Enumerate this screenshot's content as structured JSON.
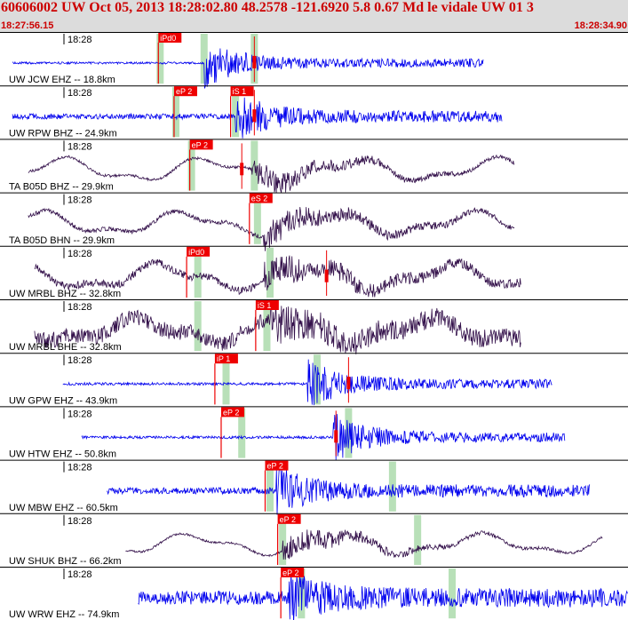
{
  "header": {
    "title": "60606002 UW Oct 05, 2013 18:28:02.80   48.2578 -121.6920  5.8 0.67 Md le vidale UW 01    3",
    "start_time": "18:27:56.15",
    "end_time": "18:28:34.90"
  },
  "colors": {
    "header_bg": "#dcdcdc",
    "header_text": "#cc0000",
    "hf_trace": "#0000ee",
    "lp_trace": "#33104a",
    "pick_box": "#ee0000",
    "green_band": "#b8e0b8"
  },
  "chart_data": {
    "type": "line",
    "minute_label": "18:28",
    "traces": [
      {
        "label": "UW JCW EHZ -- 18.8km",
        "style": "hf",
        "start": 0.02,
        "end": 0.77,
        "onset": 0.325,
        "amp": 0.9,
        "noise": 0.04,
        "picks": [
          {
            "text": "iPd0",
            "pos": 0.255
          }
        ],
        "bands": [
          0.255,
          0.325,
          0.405
        ],
        "marks": [
          0.405
        ]
      },
      {
        "label": "UW RPW BHZ -- 24.9km",
        "style": "hf",
        "start": 0.02,
        "end": 0.8,
        "onset": 0.375,
        "amp": 0.85,
        "noise": 0.1,
        "picks": [
          {
            "text": "eP 2",
            "pos": 0.28
          },
          {
            "text": "iS 1",
            "pos": 0.37
          }
        ],
        "bands": [
          0.28,
          0.375
        ],
        "marks": [
          0.405
        ]
      },
      {
        "label": "TA B05D BHZ -- 29.9km",
        "style": "lp",
        "start": 0.045,
        "end": 0.82,
        "onset": 0.4,
        "amp": 0.45,
        "noise": 0.05,
        "picks": [
          {
            "text": "eP 2",
            "pos": 0.305
          }
        ],
        "bands": [
          0.305,
          0.405
        ],
        "marks": [
          0.385
        ]
      },
      {
        "label": "TA B05D BHN -- 29.9km",
        "style": "lp",
        "start": 0.045,
        "end": 0.82,
        "onset": 0.42,
        "amp": 0.45,
        "noise": 0.08,
        "picks": [
          {
            "text": "eS 2",
            "pos": 0.4
          }
        ],
        "bands": [
          0.41
        ],
        "marks": []
      },
      {
        "label": "UW MRBL BHZ -- 32.8km",
        "style": "lp",
        "start": 0.055,
        "end": 0.83,
        "onset": 0.42,
        "amp": 0.55,
        "noise": 0.15,
        "picks": [
          {
            "text": "iPd0",
            "pos": 0.3
          }
        ],
        "bands": [
          0.315,
          0.43
        ],
        "marks": [
          0.52
        ]
      },
      {
        "label": "UW MRBL BHE -- 32.8km",
        "style": "lp",
        "start": 0.055,
        "end": 0.83,
        "onset": 0.43,
        "amp": 0.5,
        "noise": 0.3,
        "picks": [
          {
            "text": "iS 1",
            "pos": 0.41
          }
        ],
        "bands": [
          0.315,
          0.425
        ],
        "marks": []
      },
      {
        "label": "UW GPW EHZ -- 43.9km",
        "style": "hf",
        "start": 0.1,
        "end": 0.88,
        "onset": 0.49,
        "amp": 0.9,
        "noise": 0.05,
        "picks": [
          {
            "text": "iP 1",
            "pos": 0.345
          }
        ],
        "bands": [
          0.36,
          0.505
        ],
        "marks": [
          0.555
        ]
      },
      {
        "label": "UW HTW EHZ -- 50.8km",
        "style": "hf",
        "start": 0.13,
        "end": 0.9,
        "onset": 0.53,
        "amp": 0.9,
        "noise": 0.05,
        "picks": [
          {
            "text": "eP 2",
            "pos": 0.355
          }
        ],
        "bands": [
          0.385,
          0.555
        ],
        "marks": [
          0.535
        ]
      },
      {
        "label": "UW MBW EHZ -- 60.5km",
        "style": "hf",
        "start": 0.17,
        "end": 0.94,
        "onset": 0.44,
        "amp": 0.85,
        "noise": 0.12,
        "picks": [
          {
            "text": "eP 2",
            "pos": 0.425
          }
        ],
        "bands": [
          0.43,
          0.625
        ],
        "marks": []
      },
      {
        "label": "UW SHUK BHZ -- 66.2km",
        "style": "lp",
        "start": 0.2,
        "end": 0.96,
        "onset": 0.45,
        "amp": 0.3,
        "noise": 0.04,
        "picks": [
          {
            "text": "eP 2",
            "pos": 0.445
          }
        ],
        "bands": [
          0.45,
          0.665
        ],
        "marks": []
      },
      {
        "label": "UW WRW EHZ -- 74.9km",
        "style": "hf",
        "start": 0.22,
        "end": 1.0,
        "onset": 0.46,
        "amp": 0.8,
        "noise": 0.25,
        "picks": [
          {
            "text": "eP 2",
            "pos": 0.45
          }
        ],
        "bands": [
          0.48,
          0.72
        ],
        "marks": []
      }
    ]
  }
}
